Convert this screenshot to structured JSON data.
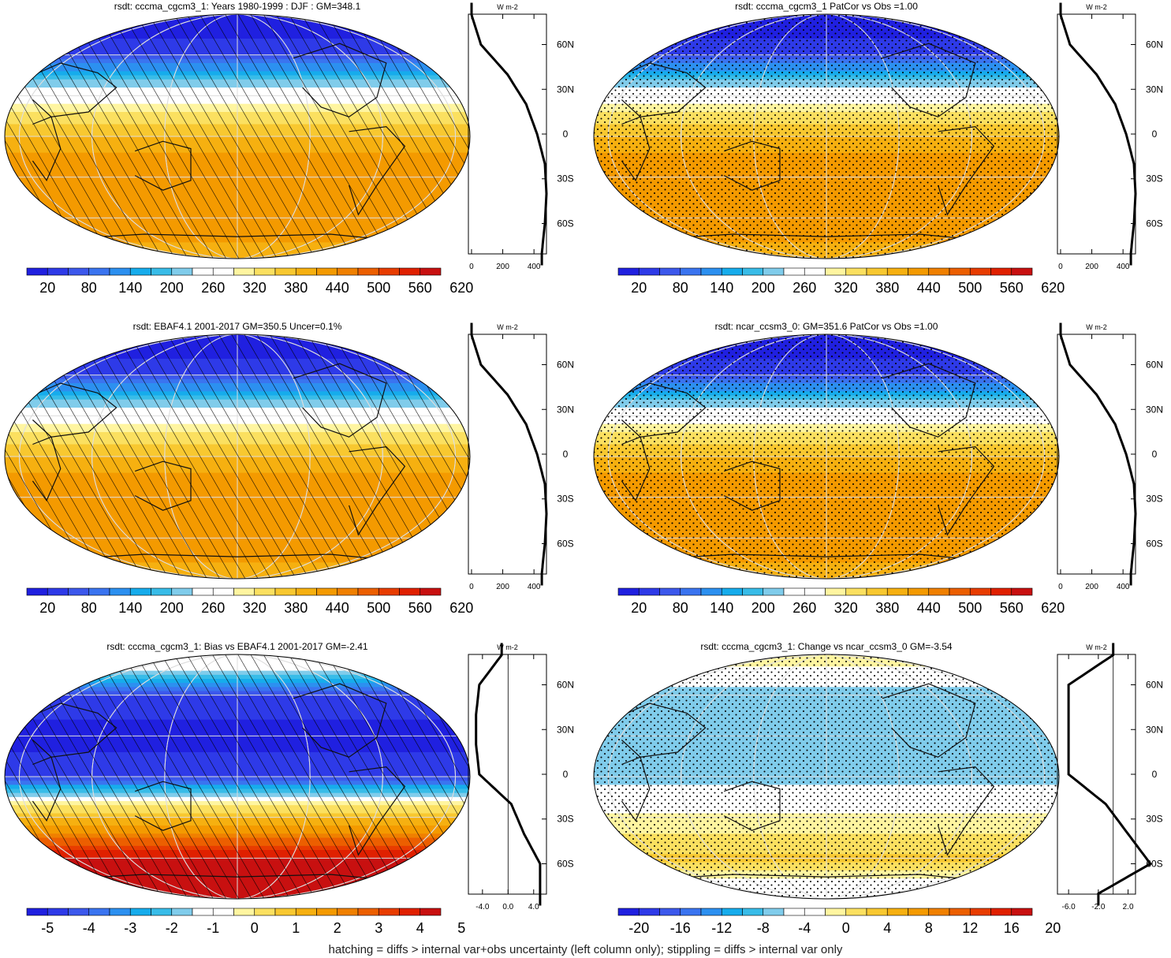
{
  "footer": "hatching = diffs > internal var+obs uncertainty (left column only); stippling = diffs > internal var only",
  "colors": {
    "abs": [
      "#2020e0",
      "#2e3ae8",
      "#3c58ec",
      "#3a74f0",
      "#2c90f0",
      "#16acec",
      "#38bce8",
      "#80cceb",
      "#ffffff",
      "#ffffff",
      "#fff5a0",
      "#fbe060",
      "#f8c830",
      "#f6b010",
      "#f49a00",
      "#f08000",
      "#ec5f00",
      "#e83c00",
      "#e02000",
      "#c81010"
    ],
    "diff": [
      "#2020e0",
      "#2e3ae8",
      "#3c58ec",
      "#3a74f0",
      "#2c90f0",
      "#16acec",
      "#38bce8",
      "#80cceb",
      "#ffffff",
      "#ffffff",
      "#fff5a0",
      "#fbe060",
      "#f8c830",
      "#f6b010",
      "#f49a00",
      "#f08000",
      "#ec5f00",
      "#e83c00",
      "#e02000",
      "#c81010"
    ]
  },
  "profile_ylabels": [
    "60N",
    "30N",
    "0",
    "30S",
    "60S"
  ],
  "profile_unit": "W m-2",
  "chart_data": [
    {
      "id": "p1",
      "type": "heatmap",
      "title": "rsdt: cccma_cgcm3_1: Years 1980-1999 : DJF : GM=348.1",
      "lat": [
        80,
        60,
        40,
        20,
        0,
        -20,
        -40,
        -60,
        -80
      ],
      "values": [
        0,
        60,
        230,
        350,
        420,
        470,
        480,
        470,
        450
      ],
      "mask": "hatch",
      "colorbar": "abs",
      "colorbar_labels": [
        "20",
        "80",
        "140",
        "200",
        "260",
        "320",
        "380",
        "440",
        "500",
        "560",
        "620"
      ],
      "profile_x": [
        0,
        200,
        400
      ],
      "profile_xlabels": [
        "0",
        "200",
        "400"
      ],
      "profile_xlim": [
        -20,
        480
      ]
    },
    {
      "id": "p2",
      "type": "heatmap",
      "title": "rsdt: cccma_cgcm3_1 PatCor vs Obs =1.00",
      "lat": [
        80,
        60,
        40,
        20,
        0,
        -20,
        -40,
        -60,
        -80
      ],
      "values": [
        0,
        60,
        230,
        350,
        420,
        470,
        480,
        470,
        450
      ],
      "mask": "stipple",
      "colorbar": "abs",
      "colorbar_labels": [
        "20",
        "80",
        "140",
        "200",
        "260",
        "320",
        "380",
        "440",
        "500",
        "560",
        "620"
      ],
      "profile_x": [
        0,
        200,
        400
      ],
      "profile_xlabels": [
        "0",
        "200",
        "400"
      ],
      "profile_xlim": [
        -20,
        480
      ]
    },
    {
      "id": "p3",
      "type": "heatmap",
      "title": "rsdt: EBAF4.1 2001-2017 GM=350.5 Uncer=0.1%",
      "lat": [
        80,
        60,
        40,
        20,
        0,
        -20,
        -40,
        -60,
        -80
      ],
      "values": [
        0,
        60,
        230,
        350,
        420,
        470,
        480,
        470,
        450
      ],
      "mask": "hatch",
      "colorbar": "abs",
      "colorbar_labels": [
        "20",
        "80",
        "140",
        "200",
        "260",
        "320",
        "380",
        "440",
        "500",
        "560",
        "620"
      ],
      "profile_x": [
        0,
        200,
        400
      ],
      "profile_xlabels": [
        "0",
        "200",
        "400"
      ],
      "profile_xlim": [
        -20,
        480
      ]
    },
    {
      "id": "p4",
      "type": "heatmap",
      "title": "rsdt: ncar_ccsm3_0: GM=351.6 PatCor vs Obs =1.00",
      "lat": [
        80,
        60,
        40,
        20,
        0,
        -20,
        -40,
        -60,
        -80
      ],
      "values": [
        0,
        60,
        230,
        350,
        420,
        470,
        480,
        470,
        450
      ],
      "mask": "stipple",
      "colorbar": "abs",
      "colorbar_labels": [
        "20",
        "80",
        "140",
        "200",
        "260",
        "320",
        "380",
        "440",
        "500",
        "560",
        "620"
      ],
      "profile_x": [
        0,
        200,
        400
      ],
      "profile_xlabels": [
        "0",
        "200",
        "400"
      ],
      "profile_xlim": [
        -20,
        480
      ]
    },
    {
      "id": "p5",
      "type": "heatmap",
      "title": "rsdt: cccma_cgcm3_1: Bias vs EBAF4.1 2001-2017 GM=-2.41",
      "lat": [
        80,
        60,
        40,
        20,
        0,
        -20,
        -40,
        -60,
        -80
      ],
      "values": [
        -1,
        -4.5,
        -5,
        -5,
        -4.5,
        0.5,
        2.5,
        5,
        5
      ],
      "mask": "hatch",
      "colorbar": "diff",
      "colorbar_labels": [
        "-5",
        "-4",
        "-3",
        "-2",
        "-1",
        "0",
        "1",
        "2",
        "3",
        "4",
        "5"
      ],
      "profile_x": [
        -4,
        0,
        4
      ],
      "profile_xlabels": [
        "-4.0",
        "0.0",
        "4.0"
      ],
      "profile_xlim": [
        -6.2,
        6
      ]
    },
    {
      "id": "p6",
      "type": "heatmap",
      "title": "rsdt: cccma_cgcm3_1: Change vs ncar_ccsm3_0 GM=-3.54",
      "lat": [
        80,
        60,
        40,
        20,
        0,
        -20,
        -40,
        -60,
        -80
      ],
      "values": [
        0,
        -6,
        -6,
        -6,
        -6,
        -1,
        2,
        5,
        -2
      ],
      "mask": "stipple",
      "colorbar": "diff",
      "colorbar_labels": [
        "-20",
        "-16",
        "-12",
        "-8",
        "-4",
        "0",
        "4",
        "8",
        "12",
        "16",
        "20"
      ],
      "profile_x": [
        -6,
        -2,
        2
      ],
      "profile_xlabels": [
        "-6.0",
        "-2.0",
        "2.0"
      ],
      "profile_xlim": [
        -7.5,
        3
      ]
    }
  ]
}
